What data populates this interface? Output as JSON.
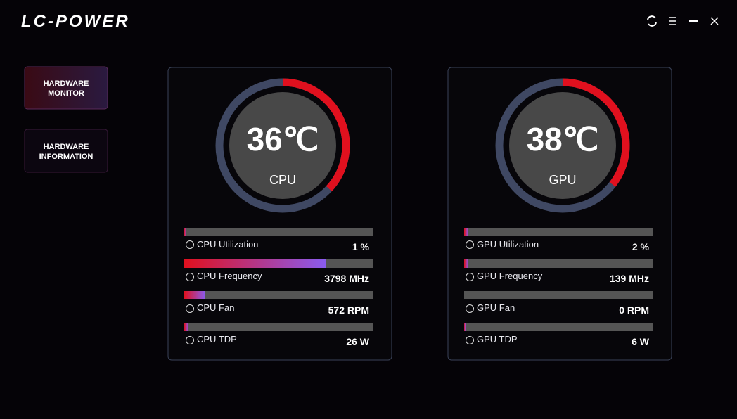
{
  "header": {
    "logo": "LC-POWER"
  },
  "nav": [
    "HARDWARE MONITOR",
    "HARDWARE INFORMATION"
  ],
  "panels": [
    {
      "temperature": "36℃",
      "label": "CPU",
      "metrics": [
        {
          "name": "CPU Utilization",
          "value": "1 %"
        },
        {
          "name": "CPU Frequency",
          "value": "3798 MHz"
        },
        {
          "name": "CPU Fan",
          "value": "572 RPM"
        },
        {
          "name": "CPU TDP",
          "value": "26 W"
        }
      ]
    },
    {
      "temperature": "38℃",
      "label": "GPU",
      "metrics": [
        {
          "name": "GPU Utilization",
          "value": "2 %"
        },
        {
          "name": "GPU Frequency",
          "value": "139 MHz"
        },
        {
          "name": "GPU Fan",
          "value": "0 RPM"
        },
        {
          "name": "GPU TDP",
          "value": "6 W"
        }
      ]
    }
  ]
}
